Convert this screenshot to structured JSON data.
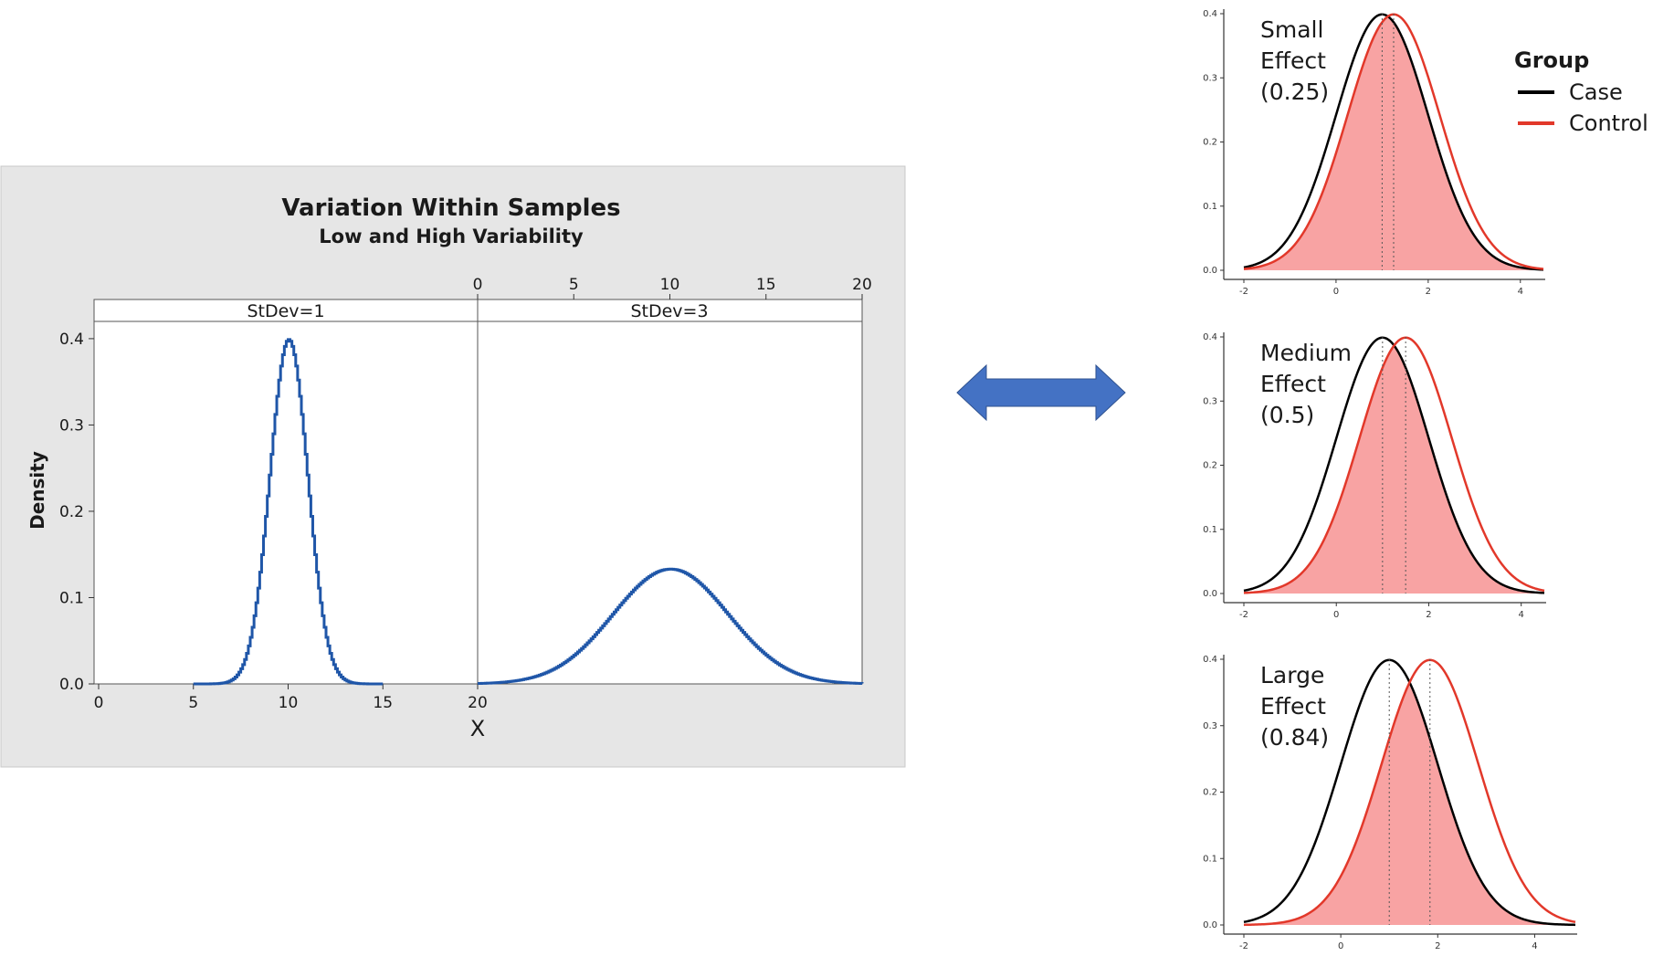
{
  "minitab_panel": {
    "title": "Variation Within Samples",
    "subtitle": "Low and High Variability",
    "ylabel": "Density",
    "xlabel": "X",
    "facets": [
      {
        "label": "StDev=1"
      },
      {
        "label": "StDev=3"
      }
    ],
    "y_ticks": [
      "0.0",
      "0.1",
      "0.2",
      "0.3",
      "0.4"
    ],
    "x_ticks_bottom": [
      "0",
      "5",
      "10",
      "15",
      "20"
    ],
    "x_ticks_top": [
      "0",
      "5",
      "10",
      "15",
      "20"
    ],
    "line_color": "#1f56a8",
    "background": "#e6e6e6"
  },
  "arrow": {
    "color": "#4472c4",
    "icon": "double-headed-arrow-icon"
  },
  "legend": {
    "title": "Group",
    "items": [
      {
        "label": "Case",
        "color": "#000000"
      },
      {
        "label": "Control",
        "color": "#e2382a"
      }
    ]
  },
  "effect_panels": [
    {
      "label_lines": [
        "Small",
        "Effect",
        "(0.25)"
      ]
    },
    {
      "label_lines": [
        "Medium",
        "Effect",
        "(0.5)"
      ]
    },
    {
      "label_lines": [
        "Large",
        "Effect",
        "(0.84)"
      ]
    }
  ],
  "effect_axes": {
    "y_ticks": [
      "0.0",
      "0.1",
      "0.2",
      "0.3",
      "0.4"
    ],
    "x_ticks": [
      "-2",
      "0",
      "2",
      "4"
    ]
  },
  "chart_data": [
    {
      "type": "line",
      "title": "Variation Within Samples",
      "subtitle": "Low and High Variability",
      "xlabel": "X",
      "ylabel": "Density",
      "xlim": [
        0,
        20
      ],
      "ylim": [
        0,
        0.42
      ],
      "series": [
        {
          "name": "StDev=1",
          "mean": 10,
          "sd": 1,
          "x_range": [
            5,
            15
          ],
          "peak": 0.399
        },
        {
          "name": "StDev=3",
          "mean": 10,
          "sd": 3,
          "x_range": [
            0,
            20
          ],
          "peak": 0.133
        }
      ]
    },
    {
      "type": "area",
      "title": "",
      "xlabel": "",
      "ylabel": "",
      "xlim": [
        -2,
        4.5
      ],
      "ylim": [
        0,
        0.4
      ],
      "effect_size": 0.25,
      "series": [
        {
          "name": "Case",
          "mean": 1.0,
          "sd": 1,
          "color": "#000000"
        },
        {
          "name": "Control",
          "mean": 1.25,
          "sd": 1,
          "color": "#e2382a"
        }
      ],
      "mean_lines": [
        1.0,
        1.25
      ]
    },
    {
      "type": "area",
      "title": "",
      "xlabel": "",
      "ylabel": "",
      "xlim": [
        -2,
        4.5
      ],
      "ylim": [
        0,
        0.4
      ],
      "effect_size": 0.5,
      "series": [
        {
          "name": "Case",
          "mean": 1.0,
          "sd": 1,
          "color": "#000000"
        },
        {
          "name": "Control",
          "mean": 1.5,
          "sd": 1,
          "color": "#e2382a"
        }
      ],
      "mean_lines": [
        1.0,
        1.5
      ]
    },
    {
      "type": "area",
      "title": "",
      "xlabel": "",
      "ylabel": "",
      "xlim": [
        -2,
        4.84
      ],
      "ylim": [
        0,
        0.4
      ],
      "effect_size": 0.84,
      "series": [
        {
          "name": "Case",
          "mean": 1.0,
          "sd": 1,
          "color": "#000000"
        },
        {
          "name": "Control",
          "mean": 1.84,
          "sd": 1,
          "color": "#e2382a"
        }
      ],
      "mean_lines": [
        1.0,
        1.84
      ]
    }
  ]
}
